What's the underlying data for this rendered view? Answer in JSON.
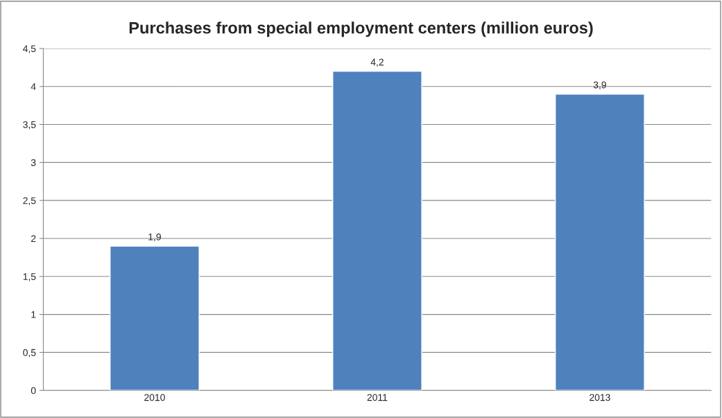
{
  "chart_data": {
    "type": "bar",
    "title": "Purchases from special employment centers (million euros)",
    "categories": [
      "2010",
      "2011",
      "2013"
    ],
    "values": [
      1.9,
      4.2,
      3.9
    ],
    "value_labels": [
      "1,9",
      "4,2",
      "3,9"
    ],
    "color": "#4f81bd",
    "ylim": [
      0,
      4.5
    ],
    "yticks": [
      0,
      {
        "value": 0.5,
        "label": "0,5"
      },
      1,
      {
        "value": 1.5,
        "label": "1,5"
      },
      2,
      {
        "value": 2.5,
        "label": "2,5"
      },
      3,
      {
        "value": 3.5,
        "label": "3,5"
      },
      4,
      {
        "value": 4.5,
        "label": "4,5"
      }
    ],
    "grid": "y",
    "legend": false
  }
}
